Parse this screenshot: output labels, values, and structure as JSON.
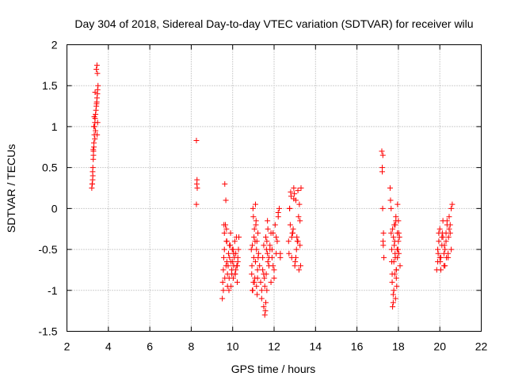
{
  "chart_data": {
    "type": "scatter",
    "title": "Day 304 of 2018, Sidereal Day-to-day VTEC variation (SDTVAR) for receiver wilu",
    "xlabel": "GPS time / hours",
    "ylabel": "SDTVAR / TECUs",
    "xlim": [
      2,
      22
    ],
    "ylim": [
      -1.5,
      2
    ],
    "xticks": [
      "2",
      "4",
      "6",
      "8",
      "10",
      "12",
      "14",
      "16",
      "18",
      "20",
      "22"
    ],
    "yticks": [
      "-1.5",
      "-1",
      "-0.5",
      "0",
      "0.5",
      "1",
      "1.5",
      "2"
    ],
    "grid": true,
    "marker": "plus",
    "color": "#ff0000",
    "series": [
      {
        "name": "SDTVAR",
        "x": [
          3.2,
          3.22,
          3.24,
          3.25,
          3.27,
          3.28,
          3.3,
          3.3,
          3.32,
          3.33,
          3.35,
          3.36,
          3.38,
          3.4,
          3.42,
          3.44,
          3.45,
          3.47,
          3.48,
          3.5,
          3.25,
          3.3,
          3.35,
          3.28,
          3.42,
          3.45,
          3.47,
          3.22,
          3.38,
          3.32,
          3.27,
          3.43,
          3.36,
          3.48,
          3.46,
          3.24,
          8.25,
          8.25,
          8.27,
          8.28,
          8.29,
          9.5,
          9.52,
          9.55,
          9.57,
          9.6,
          9.6,
          9.62,
          9.65,
          9.67,
          9.7,
          9.72,
          9.75,
          9.78,
          9.8,
          9.83,
          9.85,
          9.88,
          9.9,
          9.92,
          9.95,
          9.98,
          10.0,
          10.03,
          10.05,
          10.08,
          10.1,
          10.12,
          10.15,
          10.18,
          10.2,
          10.22,
          10.25,
          10.28,
          10.3,
          9.58,
          9.68,
          9.75,
          9.85,
          9.95,
          10.05,
          10.15,
          10.25,
          9.62,
          9.72,
          9.82,
          9.92,
          10.02,
          10.12,
          10.22,
          9.55,
          9.7,
          10.9,
          10.92,
          10.95,
          10.98,
          11.0,
          11.02,
          11.05,
          11.08,
          11.1,
          11.12,
          11.15,
          11.18,
          11.2,
          11.22,
          11.25,
          10.95,
          11.0,
          11.05,
          11.1,
          11.15,
          11.2,
          10.93,
          11.03,
          11.13,
          11.23,
          10.97,
          11.07,
          11.17,
          11.3,
          11.35,
          11.4,
          11.45,
          11.5,
          11.5,
          11.55,
          11.6,
          11.62,
          11.65,
          11.68,
          11.7,
          11.75,
          11.8,
          11.85,
          11.9,
          11.95,
          12.0,
          12.05,
          12.1,
          12.15,
          12.2,
          12.25,
          12.3,
          11.4,
          11.5,
          11.6,
          11.7,
          11.8,
          11.9,
          12.0,
          12.1,
          12.2,
          12.3,
          11.45,
          11.55,
          11.65,
          11.75,
          11.85,
          11.95,
          11.58,
          11.63,
          11.53,
          11.68,
          12.7,
          12.75,
          12.8,
          12.85,
          12.9,
          12.95,
          13.0,
          13.05,
          13.1,
          13.15,
          13.2,
          13.25,
          13.3,
          12.72,
          12.82,
          12.92,
          13.02,
          13.12,
          13.22,
          12.78,
          12.88,
          12.98,
          13.08,
          13.18,
          13.28,
          12.75,
          12.85,
          12.95,
          13.05,
          13.15,
          13.25,
          17.2,
          17.22,
          17.25,
          17.27,
          17.3,
          17.22,
          17.28,
          17.24,
          17.26,
          17.6,
          17.62,
          17.65,
          17.68,
          17.7,
          17.72,
          17.75,
          17.78,
          17.8,
          17.82,
          17.85,
          17.88,
          17.9,
          17.92,
          17.95,
          17.98,
          18.0,
          18.02,
          18.05,
          18.08,
          17.65,
          17.7,
          17.75,
          17.8,
          17.85,
          17.9,
          17.95,
          18.0,
          17.72,
          17.78,
          17.84,
          17.9,
          17.96,
          18.02,
          17.68,
          17.76,
          17.86,
          17.94,
          17.82,
          17.88,
          19.85,
          19.9,
          19.95,
          20.0,
          20.05,
          20.1,
          20.15,
          20.2,
          20.25,
          20.3,
          20.35,
          20.4,
          20.45,
          20.5,
          20.55,
          20.6,
          19.9,
          20.0,
          20.1,
          20.2,
          20.3,
          20.4,
          20.5,
          19.95,
          20.05,
          20.15,
          20.25,
          20.35,
          20.45,
          20.55,
          19.92,
          20.02,
          20.12,
          20.22,
          20.32,
          20.42
        ],
        "y": [
          0.25,
          0.3,
          0.35,
          0.5,
          0.6,
          0.7,
          0.75,
          0.8,
          0.9,
          1.0,
          1.05,
          1.1,
          1.15,
          1.2,
          1.25,
          1.3,
          1.35,
          1.4,
          1.45,
          1.5,
          0.4,
          1.0,
          0.85,
          0.65,
          1.7,
          1.75,
          1.65,
          0.3,
          0.95,
          1.12,
          0.72,
          1.28,
          1.42,
          1.05,
          0.9,
          0.45,
          0.83,
          0.05,
          0.3,
          0.35,
          0.25,
          -1.1,
          -0.9,
          -0.75,
          -0.6,
          -0.5,
          -0.3,
          0.3,
          -0.2,
          0.1,
          -0.4,
          -0.65,
          -0.8,
          -0.7,
          -0.55,
          -0.85,
          -0.6,
          -0.45,
          -0.3,
          -0.95,
          -0.75,
          -0.5,
          -0.65,
          -0.85,
          -0.7,
          -0.6,
          -0.4,
          -0.8,
          -0.55,
          -0.35,
          -0.7,
          -0.9,
          -0.65,
          -0.5,
          -0.35,
          -0.2,
          -0.7,
          -0.95,
          -0.45,
          -0.8,
          -0.55,
          -0.75,
          -0.6,
          -0.85,
          -0.4,
          -1.0,
          -0.65,
          -0.5,
          -0.8,
          -0.7,
          -1.0,
          -0.25,
          -0.5,
          -0.8,
          -1.0,
          0.0,
          -0.1,
          -0.6,
          -0.9,
          -0.4,
          0.05,
          -0.2,
          -0.5,
          -1.05,
          -0.75,
          -0.3,
          -0.55,
          -0.45,
          -0.9,
          -0.25,
          -0.65,
          -0.95,
          -0.85,
          -0.7,
          -0.35,
          -0.15,
          -0.6,
          -1.0,
          -0.85,
          -0.4,
          -0.7,
          -0.9,
          -1.1,
          -0.6,
          -0.45,
          -1.2,
          -1.3,
          -0.35,
          -0.8,
          -1.0,
          -0.55,
          -0.25,
          -0.7,
          -0.5,
          -0.9,
          -0.6,
          -0.3,
          -0.75,
          -0.2,
          -0.55,
          -0.4,
          -0.1,
          0.0,
          -0.6,
          -1.0,
          -0.8,
          -1.15,
          -0.65,
          -0.45,
          -0.5,
          -0.85,
          -0.35,
          -0.05,
          -0.55,
          -0.75,
          -0.95,
          -0.4,
          -0.6,
          -0.3,
          -0.7,
          -1.25,
          -0.5,
          -0.85,
          -0.15,
          -0.4,
          0.0,
          0.2,
          -0.6,
          -0.3,
          0.25,
          -0.7,
          0.1,
          -0.35,
          0.22,
          -0.75,
          -0.45,
          0.25,
          -0.55,
          0.15,
          -0.25,
          -0.65,
          -0.4,
          0.05,
          -0.2,
          -0.3,
          0.18,
          -0.5,
          -0.1,
          -0.7,
          0.0,
          -0.35,
          0.12,
          -0.6,
          -0.4,
          -0.15,
          0.7,
          0.45,
          0.65,
          -0.45,
          -0.6,
          0.5,
          -0.3,
          0.0,
          -0.4,
          0.25,
          0.1,
          -0.3,
          -0.5,
          -0.8,
          -1.2,
          -1.05,
          -0.65,
          -0.2,
          -0.4,
          -0.6,
          -0.1,
          -0.75,
          -0.95,
          -0.3,
          -0.5,
          -0.15,
          -0.55,
          -0.35,
          -0.7,
          0.0,
          -0.9,
          -1.15,
          -0.45,
          -0.2,
          -0.85,
          -0.6,
          -0.4,
          -0.25,
          -1.0,
          -0.55,
          -0.75,
          0.05,
          -0.3,
          -0.65,
          -0.35,
          -1.1,
          -0.5,
          -0.8,
          -0.15,
          -0.75,
          -0.5,
          -0.3,
          -0.6,
          -0.75,
          -0.35,
          -0.15,
          -0.55,
          -0.7,
          -0.4,
          -0.2,
          -0.6,
          -0.1,
          -0.3,
          -0.5,
          0.05,
          -0.65,
          -0.25,
          -0.45,
          -0.7,
          -0.3,
          -0.55,
          -0.2,
          -0.4,
          -0.6,
          -0.35,
          -0.5,
          -0.15,
          -0.25,
          0.0,
          -0.55,
          -0.65,
          -0.3,
          -0.45,
          -0.6,
          -0.35
        ]
      }
    ]
  }
}
